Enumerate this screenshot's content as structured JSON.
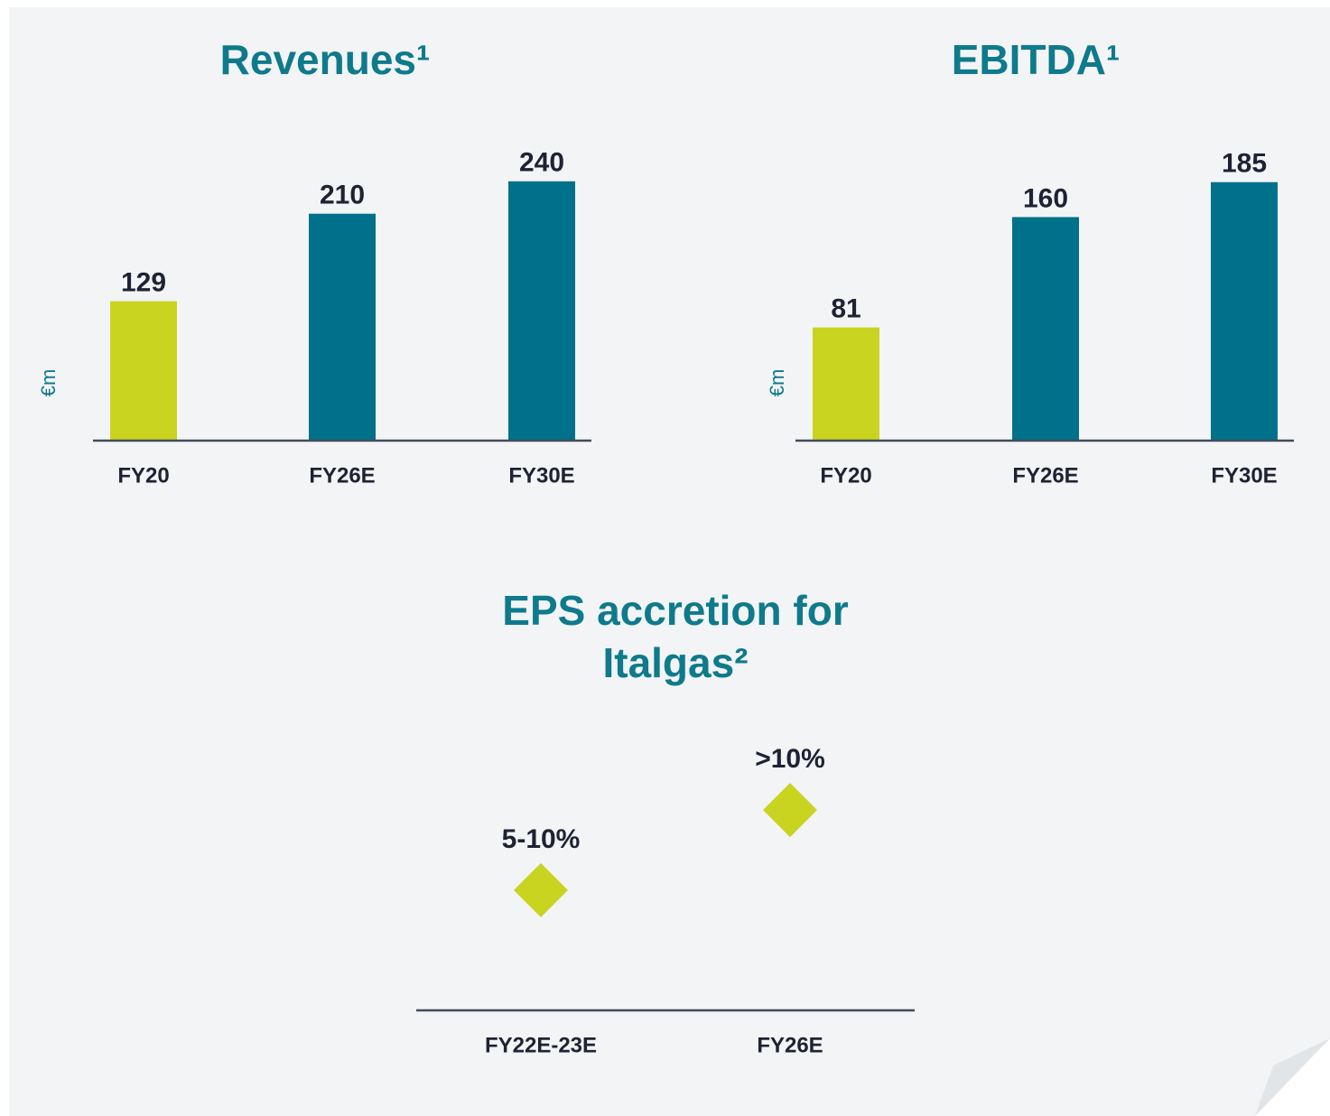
{
  "chart_data": [
    {
      "type": "bar",
      "title": "Revenues¹",
      "y_label": "€m",
      "categories": [
        "FY20",
        "FY26E",
        "FY30E"
      ],
      "values": [
        129,
        210,
        240
      ],
      "colors": [
        "#c9d421",
        "#00718a",
        "#00718a"
      ],
      "ylim": [
        0,
        300
      ]
    },
    {
      "type": "bar",
      "title": "EBITDA¹",
      "y_label": "€m",
      "categories": [
        "FY20",
        "FY26E",
        "FY30E"
      ],
      "values": [
        81,
        160,
        185
      ],
      "colors": [
        "#c9d421",
        "#00718a",
        "#00718a"
      ],
      "ylim": [
        0,
        232
      ]
    },
    {
      "type": "scatter",
      "title": [
        "EPS accretion for",
        "Italgas²"
      ],
      "marker": "diamond",
      "categories": [
        "FY22E-23E",
        "FY26E"
      ],
      "values": [
        7.5,
        12.5
      ],
      "value_labels": [
        "5-10%",
        ">10%"
      ],
      "color": "#c9d421",
      "ylim": [
        0,
        20
      ]
    }
  ]
}
